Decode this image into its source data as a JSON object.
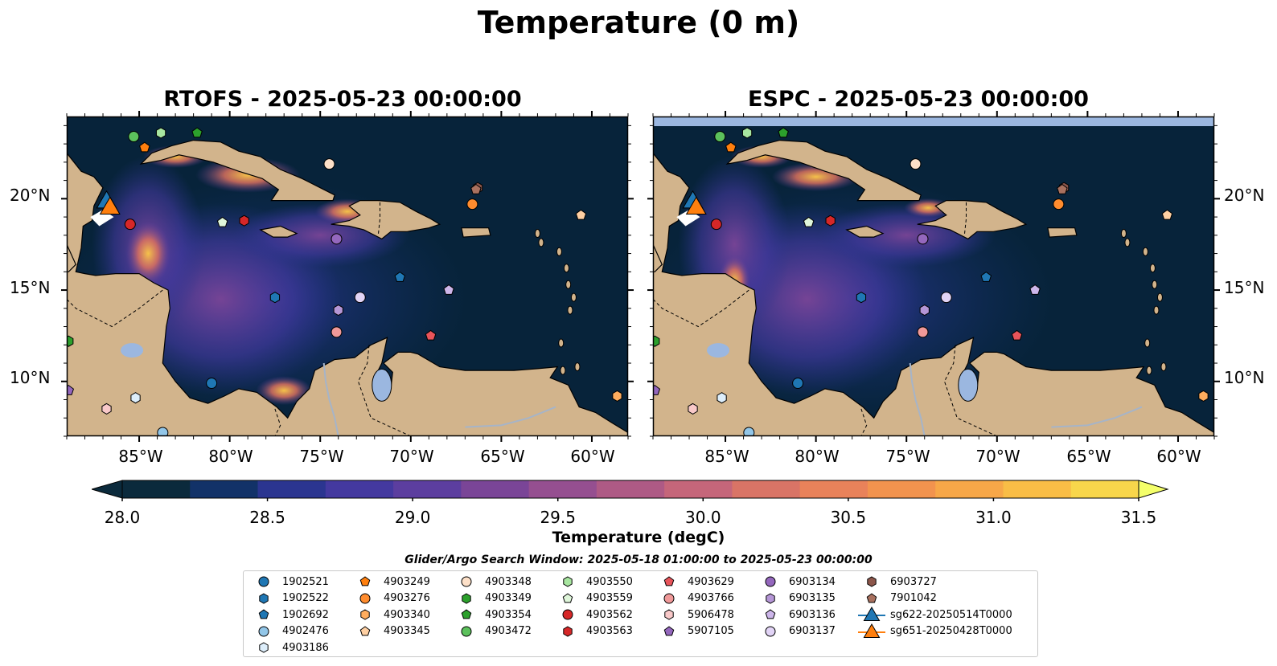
{
  "figure": {
    "title": "Temperature (0 m)",
    "panels": [
      {
        "id": "rtofs",
        "title": "RTOFS - 2025-05-23 00:00:00"
      },
      {
        "id": "espc",
        "title": "ESPC - 2025-05-23 00:00:00"
      }
    ],
    "lat_labels": [
      "20°N",
      "15°N",
      "10°N"
    ],
    "lon_labels": [
      "85°W",
      "80°W",
      "75°W",
      "70°W",
      "65°W",
      "60°W"
    ],
    "extent": {
      "lon_min": -89,
      "lon_max": -58,
      "lat_min": 7,
      "lat_max": 24.5
    },
    "colorbar": {
      "label": "Temperature (degC)",
      "ticks": [
        "28.0",
        "28.5",
        "29.0",
        "29.5",
        "30.0",
        "30.5",
        "31.0",
        "31.5"
      ],
      "vmin": 28.0,
      "vmax": 31.5,
      "extend": "both",
      "colors": [
        "#0b2a3c",
        "#123268",
        "#2b3590",
        "#44399f",
        "#5c3e9f",
        "#7a4597",
        "#954f90",
        "#ae5a85",
        "#c5667a",
        "#d97466",
        "#e9825a",
        "#f2934e",
        "#f7a748",
        "#f9bd46",
        "#f8d64b"
      ]
    },
    "search_window": "Glider/Argo Search Window: 2025-05-18 01:00:00 to 2025-05-23 00:00:00",
    "colors": {
      "land": "#d2b48c",
      "ocean_base": "#07233a",
      "lakes": "#9bb7e0",
      "rivers": "#a6b4c8"
    }
  },
  "legend": [
    {
      "label": "1902521",
      "marker": "circle",
      "color": "#1f77b4"
    },
    {
      "label": "1902522",
      "marker": "hexagon",
      "color": "#1f77b4"
    },
    {
      "label": "1902692",
      "marker": "pentagon",
      "color": "#1f77b4"
    },
    {
      "label": "4902476",
      "marker": "circle",
      "color": "#92c6e8"
    },
    {
      "label": "4903186",
      "marker": "hexagon",
      "color": "#ddeefb"
    },
    {
      "label": "4903249",
      "marker": "pentagon",
      "color": "#ff7f0e"
    },
    {
      "label": "4903276",
      "marker": "circle",
      "color": "#ff8c2e"
    },
    {
      "label": "4903340",
      "marker": "hexagon",
      "color": "#ffad5e"
    },
    {
      "label": "4903345",
      "marker": "pentagon",
      "color": "#ffd0a3"
    },
    {
      "label": "4903348",
      "marker": "circle",
      "color": "#fde0c8"
    },
    {
      "label": "4903349",
      "marker": "hexagon",
      "color": "#2ca02c"
    },
    {
      "label": "4903354",
      "marker": "pentagon",
      "color": "#2ca02c"
    },
    {
      "label": "4903472",
      "marker": "circle",
      "color": "#5cc15c"
    },
    {
      "label": "4903550",
      "marker": "hexagon",
      "color": "#a8e6a0"
    },
    {
      "label": "4903559",
      "marker": "pentagon",
      "color": "#dff6da"
    },
    {
      "label": "4903562",
      "marker": "circle",
      "color": "#d62728"
    },
    {
      "label": "4903563",
      "marker": "hexagon",
      "color": "#d62728"
    },
    {
      "label": "4903629",
      "marker": "pentagon",
      "color": "#e8545a"
    },
    {
      "label": "4903766",
      "marker": "circle",
      "color": "#f09999"
    },
    {
      "label": "5906478",
      "marker": "hexagon",
      "color": "#f9c9c9"
    },
    {
      "label": "5907105",
      "marker": "pentagon",
      "color": "#9467bd"
    },
    {
      "label": "6903134",
      "marker": "circle",
      "color": "#9467bd"
    },
    {
      "label": "6903135",
      "marker": "hexagon",
      "color": "#b596d6"
    },
    {
      "label": "6903136",
      "marker": "pentagon",
      "color": "#cdb6ea"
    },
    {
      "label": "6903137",
      "marker": "circle",
      "color": "#e2d4f6"
    },
    {
      "label": "6903727",
      "marker": "hexagon",
      "color": "#8c564b"
    },
    {
      "label": "7901042",
      "marker": "pentagon",
      "color": "#a9715f"
    },
    {
      "label": "sg622-20250514T0000",
      "marker": "triangle",
      "color": "#1f77b4"
    },
    {
      "label": "sg651-20250428T0000",
      "marker": "triangle",
      "color": "#ff7f0e"
    }
  ],
  "floats": [
    {
      "id": "1902521",
      "lon": -81,
      "lat": 9.9
    },
    {
      "id": "1902522",
      "lon": -77.5,
      "lat": 14.6
    },
    {
      "id": "1902692",
      "lon": -70.6,
      "lat": 15.7
    },
    {
      "id": "4902476",
      "lon": -83.7,
      "lat": 7.2
    },
    {
      "id": "4903186",
      "lon": -85.2,
      "lat": 9.1
    },
    {
      "id": "4903249",
      "lon": -84.7,
      "lat": 22.8
    },
    {
      "id": "4903276",
      "lon": -66.6,
      "lat": 19.7
    },
    {
      "id": "4903340",
      "lon": -58.6,
      "lat": 9.2
    },
    {
      "id": "4903345",
      "lon": -60.6,
      "lat": 19.1
    },
    {
      "id": "4903348",
      "lon": -74.5,
      "lat": 21.9
    },
    {
      "id": "4903349",
      "lon": -88.9,
      "lat": 12.2
    },
    {
      "id": "4903354",
      "lon": -81.8,
      "lat": 23.6
    },
    {
      "id": "4903472",
      "lon": -85.3,
      "lat": 23.4
    },
    {
      "id": "4903550",
      "lon": -83.8,
      "lat": 23.6
    },
    {
      "id": "4903559",
      "lon": -80.4,
      "lat": 18.7
    },
    {
      "id": "4903562",
      "lon": -85.5,
      "lat": 18.6
    },
    {
      "id": "4903563",
      "lon": -79.2,
      "lat": 18.8
    },
    {
      "id": "4903629",
      "lon": -68.9,
      "lat": 12.5
    },
    {
      "id": "4903766",
      "lon": -74.1,
      "lat": 12.7
    },
    {
      "id": "5906478",
      "lon": -86.8,
      "lat": 8.5
    },
    {
      "id": "5907105",
      "lon": -88.9,
      "lat": 9.5
    },
    {
      "id": "6903134",
      "lon": -74.1,
      "lat": 17.8
    },
    {
      "id": "6903135",
      "lon": -74,
      "lat": 13.9
    },
    {
      "id": "6903136",
      "lon": -67.9,
      "lat": 15
    },
    {
      "id": "6903137",
      "lon": -72.8,
      "lat": 14.6
    },
    {
      "id": "6903727",
      "lon": -66.3,
      "lat": 20.6
    },
    {
      "id": "7901042",
      "lon": -66.4,
      "lat": 20.5
    }
  ],
  "gliders": [
    {
      "id": "sg622-20250514T0000",
      "lon": -86.8,
      "lat": 19.8
    },
    {
      "id": "sg651-20250428T0000",
      "lon": -86.7,
      "lat": 19.6
    }
  ]
}
